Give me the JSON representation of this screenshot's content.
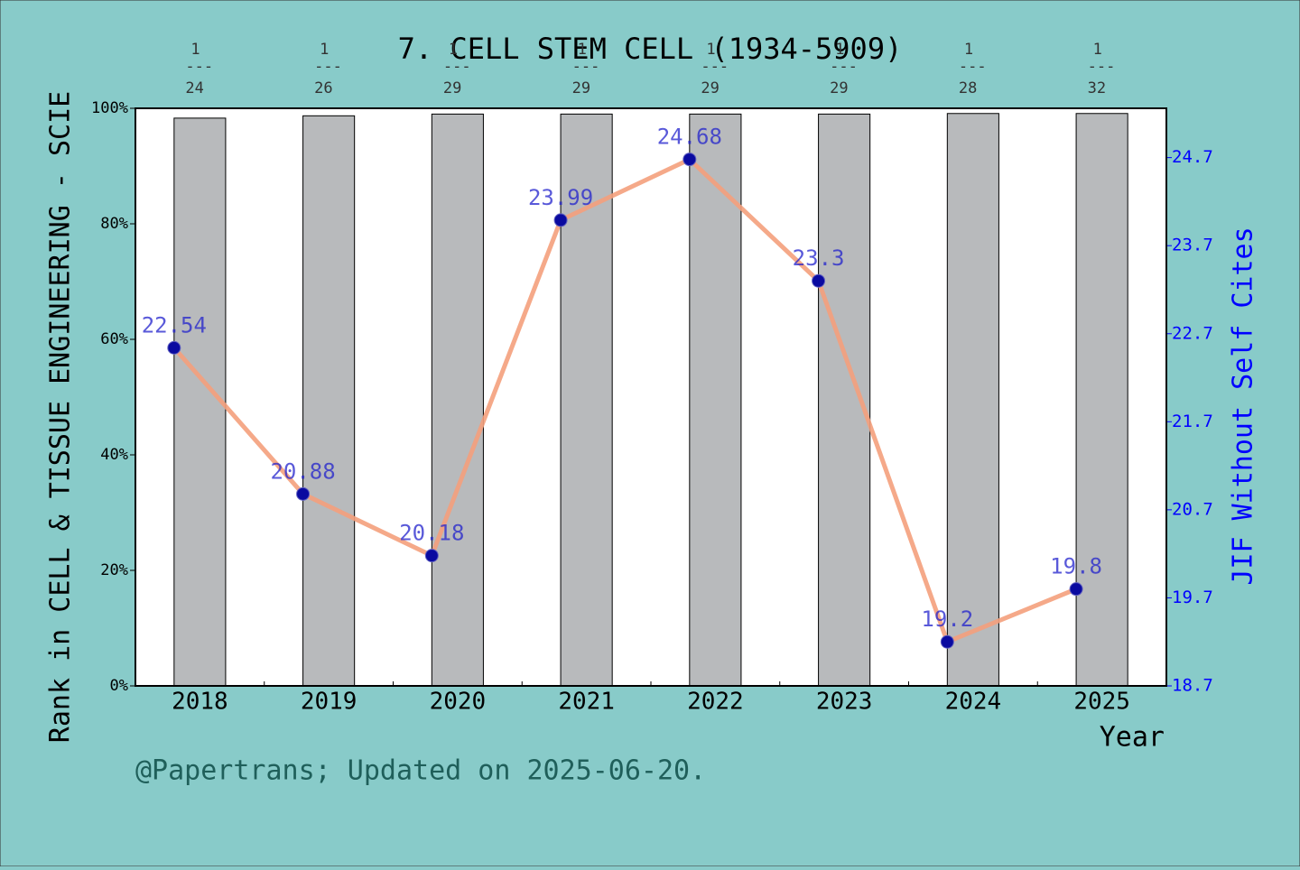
{
  "chart_data": {
    "type": "bar",
    "title": "7. CELL STEM CELL (1934-5909)",
    "x_label": "Year",
    "y_label": "Rank in CELL & TISSUE ENGINEERING - SCIE",
    "y2_label": "JIF Without Self Cites",
    "footer": "@Papertrans; Updated on 2025-06-20.",
    "categories": [
      "2018",
      "2019",
      "2020",
      "2021",
      "2022",
      "2023",
      "2024",
      "2025"
    ],
    "rank_labels": [
      {
        "numerator": "1",
        "separator": "---",
        "denominator": "24"
      },
      {
        "numerator": "1",
        "separator": "---",
        "denominator": "26"
      },
      {
        "numerator": "1",
        "separator": "---",
        "denominator": "29"
      },
      {
        "numerator": "1",
        "separator": "---",
        "denominator": "29"
      },
      {
        "numerator": "1",
        "separator": "---",
        "denominator": "29"
      },
      {
        "numerator": "1",
        "separator": "---",
        "denominator": "29"
      },
      {
        "numerator": "1",
        "separator": "---",
        "denominator": "28"
      },
      {
        "numerator": "1",
        "separator": "---",
        "denominator": "32"
      }
    ],
    "series": [
      {
        "type": "bar",
        "color": "#b8babc",
        "values": [
          98.3,
          98.7,
          99.0,
          99.0,
          99.0,
          99.0,
          99.1,
          99.1
        ]
      },
      {
        "type": "line",
        "axis": "y2",
        "color": "#f4a07c",
        "marker_color": "#0a0aa0",
        "values": [
          22.54,
          20.88,
          20.18,
          23.99,
          24.68,
          23.3,
          19.2,
          19.8
        ]
      }
    ],
    "ylim": [
      0,
      100
    ],
    "yticks": [
      {
        "value": 0,
        "label": "0%"
      },
      {
        "value": 20,
        "label": "20%"
      },
      {
        "value": 40,
        "label": "40%"
      },
      {
        "value": 60,
        "label": "60%"
      },
      {
        "value": 80,
        "label": "80%"
      },
      {
        "value": 100,
        "label": "100%"
      }
    ],
    "y2lim": [
      18.7,
      25.26
    ],
    "y2ticks": [
      18.7,
      19.7,
      20.7,
      21.7,
      22.7,
      23.7,
      24.7
    ],
    "y2_color": "#0000ff"
  }
}
